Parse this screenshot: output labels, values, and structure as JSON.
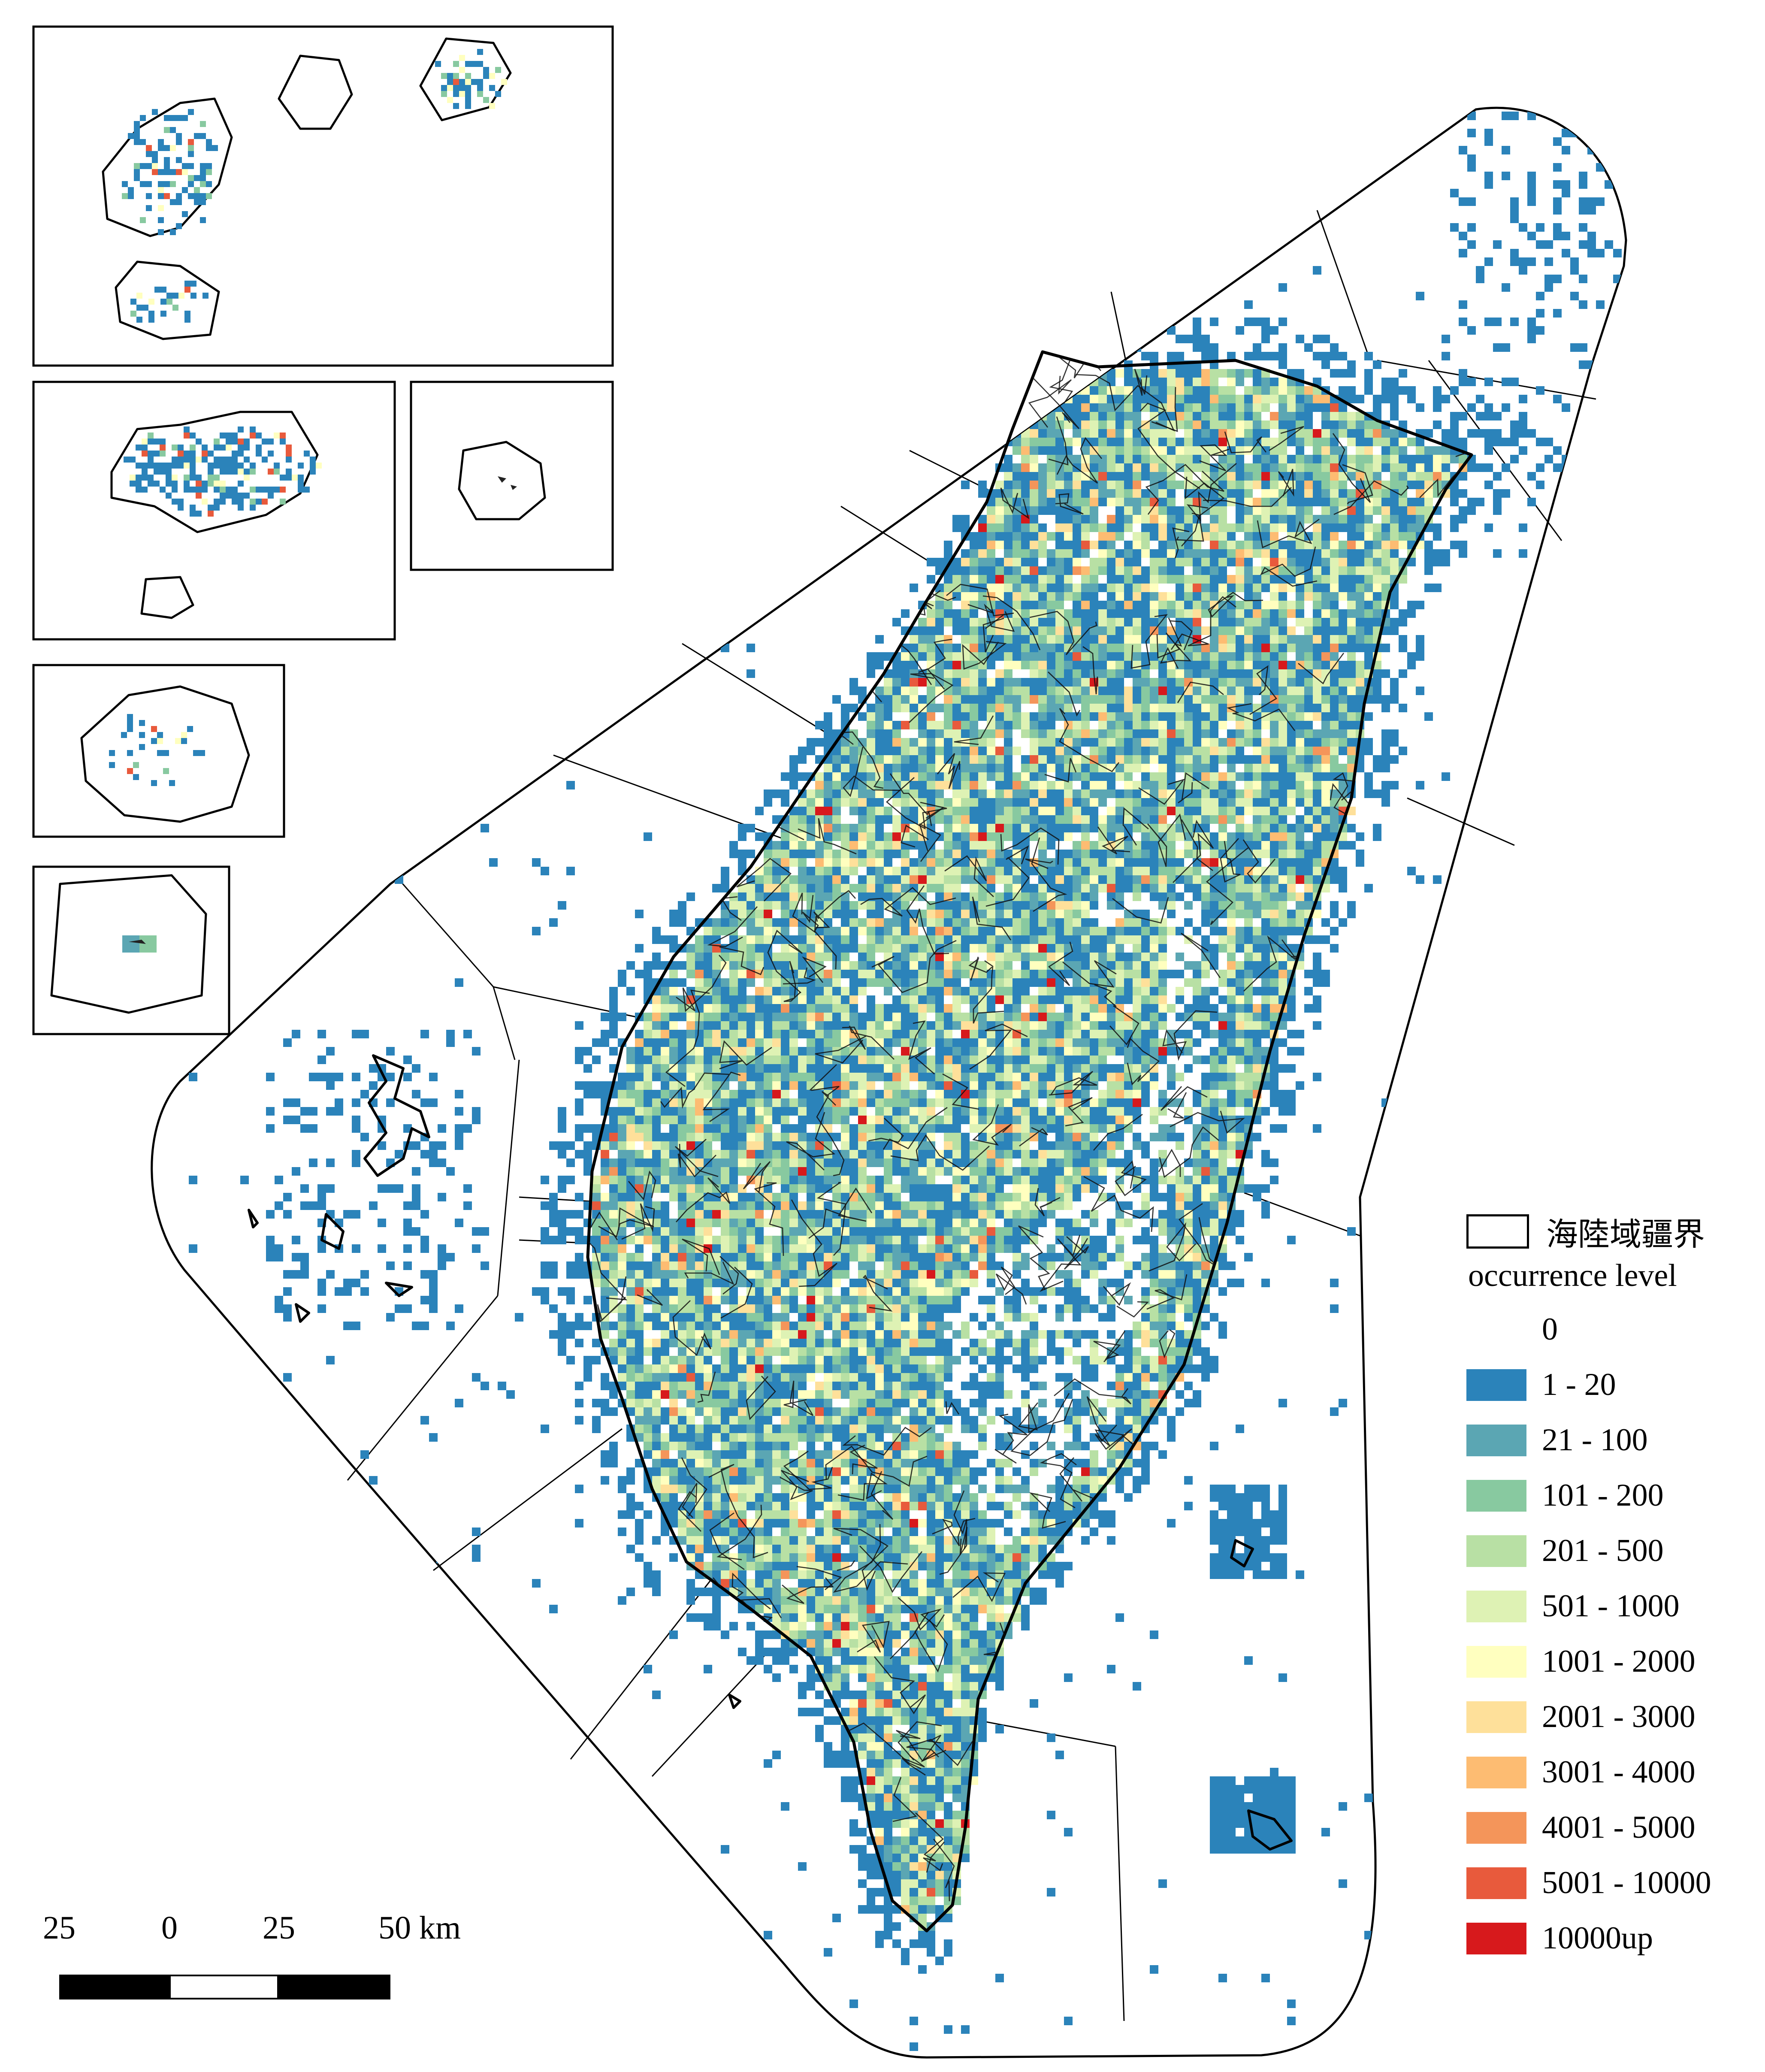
{
  "legend": {
    "boundary_label": "海陸域疆界",
    "title": "occurrence level",
    "classes": [
      {
        "label": "0",
        "color": "#ffffff"
      },
      {
        "label": "1 - 20",
        "color": "#2b83ba"
      },
      {
        "label": "21 - 100",
        "color": "#5ba6b3"
      },
      {
        "label": "101 - 200",
        "color": "#88c9a0"
      },
      {
        "label": "201 - 500",
        "color": "#b8e0a4"
      },
      {
        "label": "501 - 1000",
        "color": "#def2b4"
      },
      {
        "label": "1001 - 2000",
        "color": "#ffffbf"
      },
      {
        "label": "2001 - 3000",
        "color": "#fee09a"
      },
      {
        "label": "3001 - 4000",
        "color": "#fdbc72"
      },
      {
        "label": "4001 - 5000",
        "color": "#f4955a"
      },
      {
        "label": "5001 - 10000",
        "color": "#e85a3c"
      },
      {
        "label": "10000up",
        "color": "#d7191c"
      }
    ]
  },
  "scalebar": {
    "ticks": [
      "25",
      "0",
      "25",
      "50 km"
    ]
  }
}
